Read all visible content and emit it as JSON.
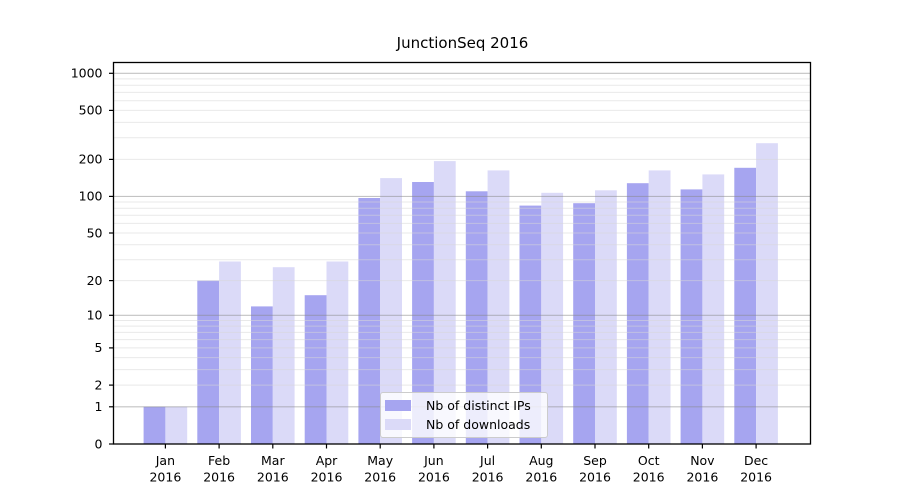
{
  "chart_data": {
    "type": "bar",
    "title": "JunctionSeq 2016",
    "categories": [
      "Jan",
      "Feb",
      "Mar",
      "Apr",
      "May",
      "Jun",
      "Jul",
      "Aug",
      "Sep",
      "Oct",
      "Nov",
      "Dec"
    ],
    "year_label": "2016",
    "series": [
      {
        "name": "Nb of distinct IPs",
        "color": "#a6a5f0",
        "values": [
          1,
          20,
          12,
          15,
          97,
          131,
          110,
          84,
          88,
          128,
          114,
          171
        ]
      },
      {
        "name": "Nb of downloads",
        "color": "#dbdaf8",
        "values": [
          1,
          29,
          26,
          29,
          141,
          194,
          163,
          107,
          112,
          163,
          151,
          271
        ]
      }
    ],
    "xlabel": "",
    "ylabel": "",
    "yscale": "log1p",
    "ylim": [
      0,
      1000
    ],
    "yticks": [
      0,
      1,
      2,
      5,
      10,
      20,
      50,
      100,
      200,
      500,
      1000
    ],
    "grid": "on",
    "legend_position": "lower-center"
  }
}
